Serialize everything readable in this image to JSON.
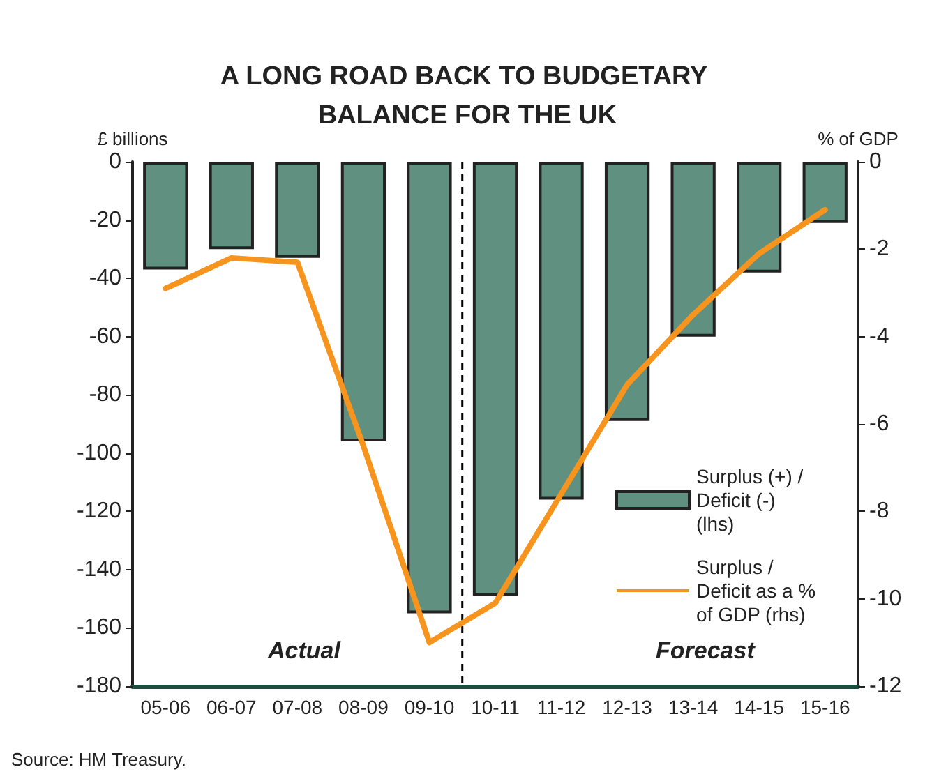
{
  "chart_data": {
    "type": "bar",
    "title": "A LONG ROAD BACK TO BUDGETARY BALANCE FOR THE UK",
    "ylabel": "£ billions",
    "y2label": "% of GDP",
    "categories": [
      "05-06",
      "06-07",
      "07-08",
      "08-09",
      "09-10",
      "10-11",
      "11-12",
      "12-13",
      "13-14",
      "14-15",
      "15-16"
    ],
    "series": [
      {
        "name": "Surplus (+) / Deficit (-) (lhs)",
        "color": "#5f9080",
        "values": [
          -37,
          -30,
          -33,
          -96,
          -155,
          -149,
          -116,
          -89,
          -60,
          -38,
          -21
        ]
      },
      {
        "name": "Surplus / Deficit as a % of GDP (rhs)",
        "type": "line",
        "axis": "y2",
        "color": "#f7941d",
        "values": [
          -2.9,
          -2.2,
          -2.3,
          -6.5,
          -11.0,
          -10.1,
          -7.6,
          -5.1,
          -3.5,
          -2.1,
          -1.1
        ]
      }
    ],
    "ylim": [
      -180,
      0
    ],
    "yticks": [
      -180,
      -160,
      -140,
      -120,
      -100,
      -80,
      -60,
      -40,
      -20,
      0
    ],
    "y2lim": [
      -12,
      0
    ],
    "y2ticks": [
      -12,
      -10,
      -8,
      -6,
      -4,
      -2,
      0
    ],
    "annotations": [
      "Actual",
      "Forecast",
      "Source: HM Treasury."
    ],
    "grid": false,
    "legend": "right",
    "marker": "none",
    "line_style": "solid"
  }
}
